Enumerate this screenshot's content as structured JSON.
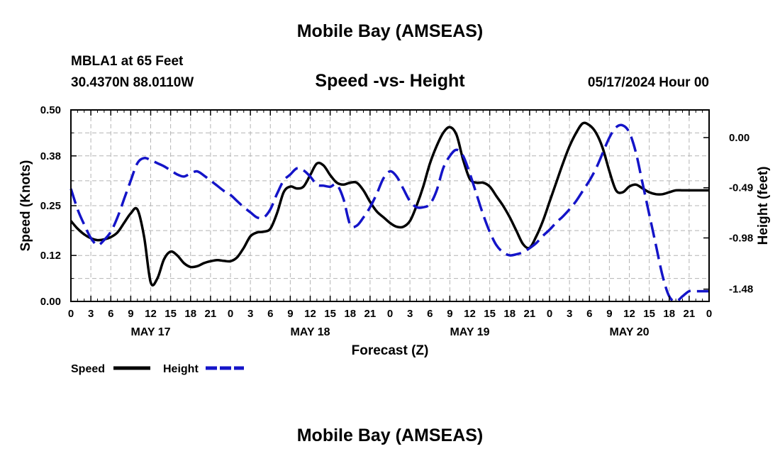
{
  "header": {
    "title": "Mobile Bay (AMSEAS)",
    "station": "MBLA1 at 65 Feet",
    "coords": "30.4370N  88.0110W",
    "subtitle": "Speed -vs- Height",
    "datetime": "05/17/2024 Hour 00"
  },
  "footer": {
    "title": "Mobile Bay (AMSEAS)"
  },
  "colors": {
    "speed": "#000000",
    "height": "#1414c8",
    "grid": "#b4b4b4"
  },
  "chart_data": {
    "type": "line",
    "title": "Speed -vs- Height",
    "xlabel": "Forecast (Z)",
    "ylabel": "Speed (Knots)",
    "y2label": "Height (feet)",
    "xlim": [
      0,
      96
    ],
    "ylim": [
      0,
      0.5
    ],
    "y2lim": [
      -1.6,
      0.27
    ],
    "xticks": [
      0,
      3,
      6,
      9,
      12,
      15,
      18,
      21,
      24,
      27,
      30,
      33,
      36,
      39,
      42,
      45,
      48,
      51,
      54,
      57,
      60,
      63,
      66,
      69,
      72,
      75,
      78,
      81,
      84,
      87,
      90,
      93,
      96
    ],
    "xtick_labels": [
      "0",
      "3",
      "6",
      "9",
      "12",
      "15",
      "18",
      "21",
      "0",
      "3",
      "6",
      "9",
      "12",
      "15",
      "18",
      "21",
      "0",
      "3",
      "6",
      "9",
      "12",
      "15",
      "18",
      "21",
      "0",
      "3",
      "6",
      "9",
      "12",
      "15",
      "18",
      "21",
      "0"
    ],
    "day_labels": [
      {
        "x": 12,
        "label": "MAY 17"
      },
      {
        "x": 36,
        "label": "MAY 18"
      },
      {
        "x": 60,
        "label": "MAY 19"
      },
      {
        "x": 84,
        "label": "MAY 20"
      }
    ],
    "yticks": [
      0.0,
      0.12,
      0.25,
      0.38,
      0.5
    ],
    "ytick_labels": [
      "0.00",
      "0.12",
      "0.25",
      "0.38",
      "0.50"
    ],
    "y2ticks": [
      0.0,
      -0.49,
      -0.98,
      -1.48
    ],
    "y2tick_labels": [
      "0.00",
      "-0.49",
      "-0.98",
      "-1.48"
    ],
    "legend": [
      {
        "label": "Speed",
        "style": "solid"
      },
      {
        "label": "Height",
        "style": "dashed"
      }
    ],
    "series": [
      {
        "name": "Speed",
        "axis": "left",
        "x": [
          0,
          1,
          2,
          3,
          4,
          5,
          6,
          7,
          8,
          9,
          10,
          11,
          12,
          13,
          14,
          15,
          16,
          17,
          18,
          19,
          20,
          21,
          22,
          23,
          24,
          25,
          26,
          27,
          28,
          29,
          30,
          31,
          32,
          33,
          34,
          35,
          36,
          37,
          38,
          39,
          40,
          41,
          42,
          43,
          44,
          45,
          46,
          47,
          48,
          49,
          50,
          51,
          52,
          53,
          54,
          55,
          56,
          57,
          58,
          59,
          60,
          61,
          62,
          63,
          64,
          65,
          66,
          67,
          68,
          69,
          70,
          71,
          72,
          73,
          74,
          75,
          76,
          77,
          78,
          79,
          80,
          81,
          82,
          83,
          84,
          85,
          86,
          87,
          88,
          89,
          90,
          91,
          92,
          93,
          94,
          95,
          96
        ],
        "values": [
          0.21,
          0.19,
          0.175,
          0.165,
          0.16,
          0.162,
          0.168,
          0.18,
          0.205,
          0.23,
          0.24,
          0.17,
          0.05,
          0.06,
          0.11,
          0.13,
          0.12,
          0.1,
          0.09,
          0.092,
          0.1,
          0.105,
          0.108,
          0.106,
          0.105,
          0.115,
          0.14,
          0.17,
          0.18,
          0.182,
          0.19,
          0.23,
          0.285,
          0.3,
          0.295,
          0.3,
          0.33,
          0.36,
          0.355,
          0.33,
          0.31,
          0.305,
          0.31,
          0.31,
          0.29,
          0.26,
          0.235,
          0.22,
          0.205,
          0.195,
          0.195,
          0.21,
          0.25,
          0.3,
          0.36,
          0.405,
          0.44,
          0.455,
          0.435,
          0.37,
          0.32,
          0.31,
          0.31,
          0.3,
          0.275,
          0.25,
          0.22,
          0.185,
          0.15,
          0.14,
          0.17,
          0.21,
          0.26,
          0.31,
          0.36,
          0.405,
          0.44,
          0.465,
          0.46,
          0.44,
          0.4,
          0.34,
          0.29,
          0.285,
          0.3,
          0.305,
          0.295,
          0.285,
          0.28,
          0.28,
          0.285,
          0.29,
          0.29,
          0.29,
          0.29,
          0.29,
          0.29
        ]
      },
      {
        "name": "Height",
        "axis": "right",
        "x": [
          0,
          1,
          2,
          3,
          4,
          5,
          6,
          7,
          8,
          9,
          10,
          11,
          12,
          13,
          14,
          15,
          16,
          17,
          18,
          19,
          20,
          21,
          22,
          23,
          24,
          25,
          26,
          27,
          28,
          29,
          30,
          31,
          32,
          33,
          34,
          35,
          36,
          37,
          38,
          39,
          40,
          41,
          42,
          43,
          44,
          45,
          46,
          47,
          48,
          49,
          50,
          51,
          52,
          53,
          54,
          55,
          56,
          57,
          58,
          59,
          60,
          61,
          62,
          63,
          64,
          65,
          66,
          67,
          68,
          69,
          70,
          71,
          72,
          73,
          74,
          75,
          76,
          77,
          78,
          79,
          80,
          81,
          82,
          83,
          84,
          85,
          86,
          87,
          88,
          89,
          90,
          91,
          92,
          93,
          94,
          95,
          96
        ],
        "values": [
          -0.5,
          -0.7,
          -0.85,
          -0.98,
          -1.05,
          -1.0,
          -0.92,
          -0.78,
          -0.6,
          -0.42,
          -0.25,
          -0.2,
          -0.22,
          -0.25,
          -0.28,
          -0.32,
          -0.36,
          -0.38,
          -0.35,
          -0.33,
          -0.37,
          -0.42,
          -0.47,
          -0.52,
          -0.56,
          -0.62,
          -0.68,
          -0.73,
          -0.78,
          -0.78,
          -0.7,
          -0.55,
          -0.42,
          -0.36,
          -0.3,
          -0.32,
          -0.38,
          -0.46,
          -0.47,
          -0.48,
          -0.46,
          -0.6,
          -0.85,
          -0.86,
          -0.78,
          -0.68,
          -0.55,
          -0.4,
          -0.33,
          -0.38,
          -0.5,
          -0.62,
          -0.68,
          -0.68,
          -0.65,
          -0.52,
          -0.3,
          -0.18,
          -0.12,
          -0.18,
          -0.35,
          -0.55,
          -0.75,
          -0.92,
          -1.05,
          -1.12,
          -1.15,
          -1.14,
          -1.12,
          -1.08,
          -1.03,
          -0.96,
          -0.9,
          -0.83,
          -0.77,
          -0.7,
          -0.62,
          -0.52,
          -0.42,
          -0.3,
          -0.15,
          0.0,
          0.1,
          0.12,
          0.05,
          -0.15,
          -0.45,
          -0.75,
          -1.05,
          -1.35,
          -1.55,
          -1.6,
          -1.55,
          -1.5,
          -1.5,
          -1.5,
          -1.5
        ]
      }
    ]
  }
}
